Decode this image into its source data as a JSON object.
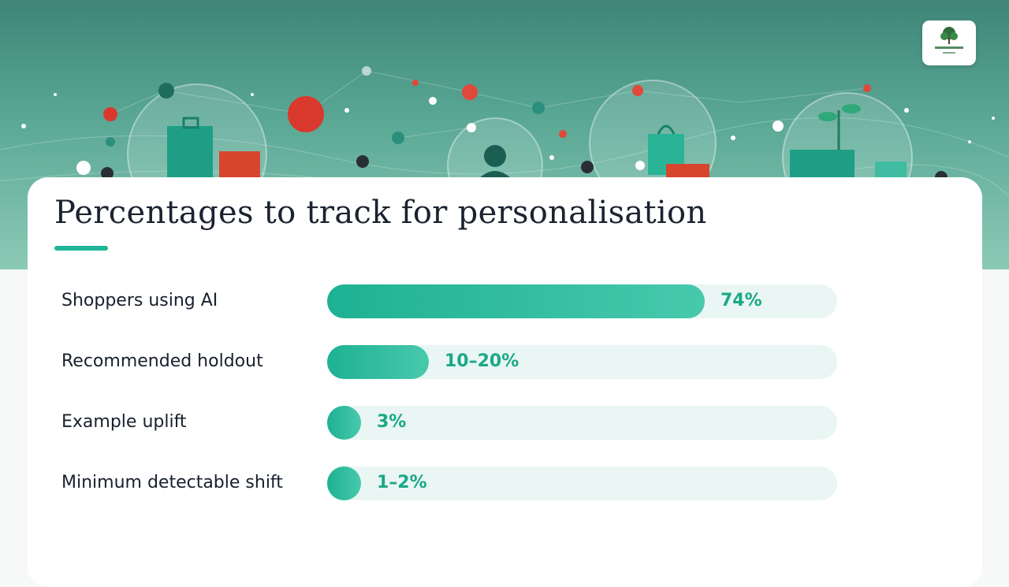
{
  "slide": {
    "title": "Percentages to track for personalisation",
    "accent_color": "#1fb596",
    "logo_icon": "tree-logo-icon"
  },
  "chart_data": {
    "type": "bar",
    "orientation": "horizontal",
    "title": "Percentages to track for personalisation",
    "categories": [
      "Shoppers using AI",
      "Recommended holdout",
      "Example uplift",
      "Minimum detectable shift"
    ],
    "value_labels": [
      "74%",
      "10–20%",
      "3%",
      "1–2%"
    ],
    "values": [
      74,
      20,
      3,
      2
    ],
    "xlim": [
      0,
      100
    ],
    "bar_color": "#1eb193",
    "track_color": "#e9f6f3",
    "grid": false,
    "legend": "none"
  }
}
